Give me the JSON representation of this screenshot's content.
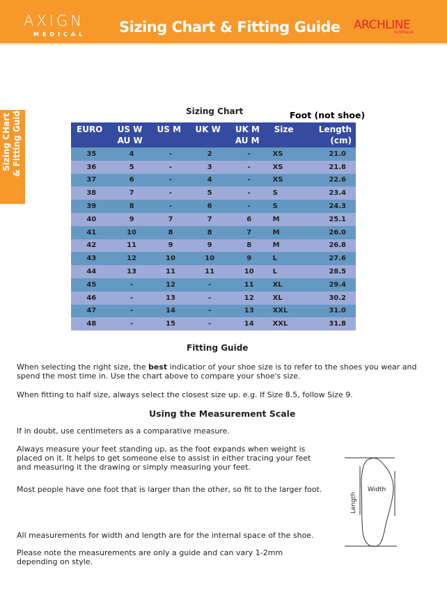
{
  "header": {
    "logo_main": "AXIGN",
    "logo_sub": "MEDICAL",
    "title": "Sizing Chart & Fitting Guide",
    "brand": "ARCHLINE",
    "brand_sub": "AUSTRALIA"
  },
  "side_tab": {
    "line1": "Sizing CHart",
    "line2": "& Fitting Guide"
  },
  "chart": {
    "title": "Sizing Chart",
    "note": "Foot (not shoe)",
    "columns": [
      [
        "EURO"
      ],
      [
        "US W",
        "AU W"
      ],
      [
        "US M"
      ],
      [
        "UK W"
      ],
      [
        "UK M",
        "AU M"
      ],
      [
        "Size"
      ],
      [
        "Length",
        "(cm)"
      ]
    ],
    "rows": [
      [
        "35",
        "4",
        "-",
        "2",
        "-",
        "XS",
        "21.0"
      ],
      [
        "36",
        "5",
        "-",
        "3",
        "-",
        "XS",
        "21.8"
      ],
      [
        "37",
        "6",
        "-",
        "4",
        "-",
        "XS",
        "22.6"
      ],
      [
        "38",
        "7",
        "-",
        "5",
        "-",
        "S",
        "23.4"
      ],
      [
        "39",
        "8",
        "-",
        "6",
        "-",
        "S",
        "24.3"
      ],
      [
        "40",
        "9",
        "7",
        "7",
        "6",
        "M",
        "25.1"
      ],
      [
        "41",
        "10",
        "8",
        "8",
        "7",
        "M",
        "26.0"
      ],
      [
        "42",
        "11",
        "9",
        "9",
        "8",
        "M",
        "26.8"
      ],
      [
        "43",
        "12",
        "10",
        "10",
        "9",
        "L",
        "27.6"
      ],
      [
        "44",
        "13",
        "11",
        "11",
        "10",
        "L",
        "28.5"
      ],
      [
        "45",
        "-",
        "12",
        "-",
        "11",
        "XL",
        "29.4"
      ],
      [
        "46",
        "-",
        "13",
        "-",
        "12",
        "XL",
        "30.2"
      ],
      [
        "47",
        "-",
        "14",
        "-",
        "13",
        "XXL",
        "31.0"
      ],
      [
        "48",
        "-",
        "15",
        "-",
        "14",
        "XXL",
        "31.8"
      ]
    ]
  },
  "fitting": {
    "title": "Fitting Guide",
    "p1_a": "When selecting the right size, the ",
    "p1_b": "best",
    "p1_c": " indicatior of your shoe size is to refer to the shoes you wear and spend the most time in. Use the chart above to compare your shoe's size.",
    "p2": "When fitting to half size, always select the closest size up. e.g. If Size 8.5, follow Size 9."
  },
  "measure": {
    "title": "Using the Measurement Scale",
    "p1": "If in doubt, use centimeters as a comparative measure.",
    "p2": "Always measure your feet standing up, as the foot expands when weight is placed on it. It helps to get someone else to assist in either tracing your feet and measuring it the drawing or simply measuring your feet.",
    "p3": "Most people have one foot that is larger than the other, so fit to the larger foot.",
    "p4": "All measurements for width and length are for the internal space of the shoe.",
    "p5": "Please note the measurements are only a guide and can vary 1-2mm depending on style."
  },
  "diagram": {
    "length_label": "Length",
    "width_label": "Width"
  }
}
